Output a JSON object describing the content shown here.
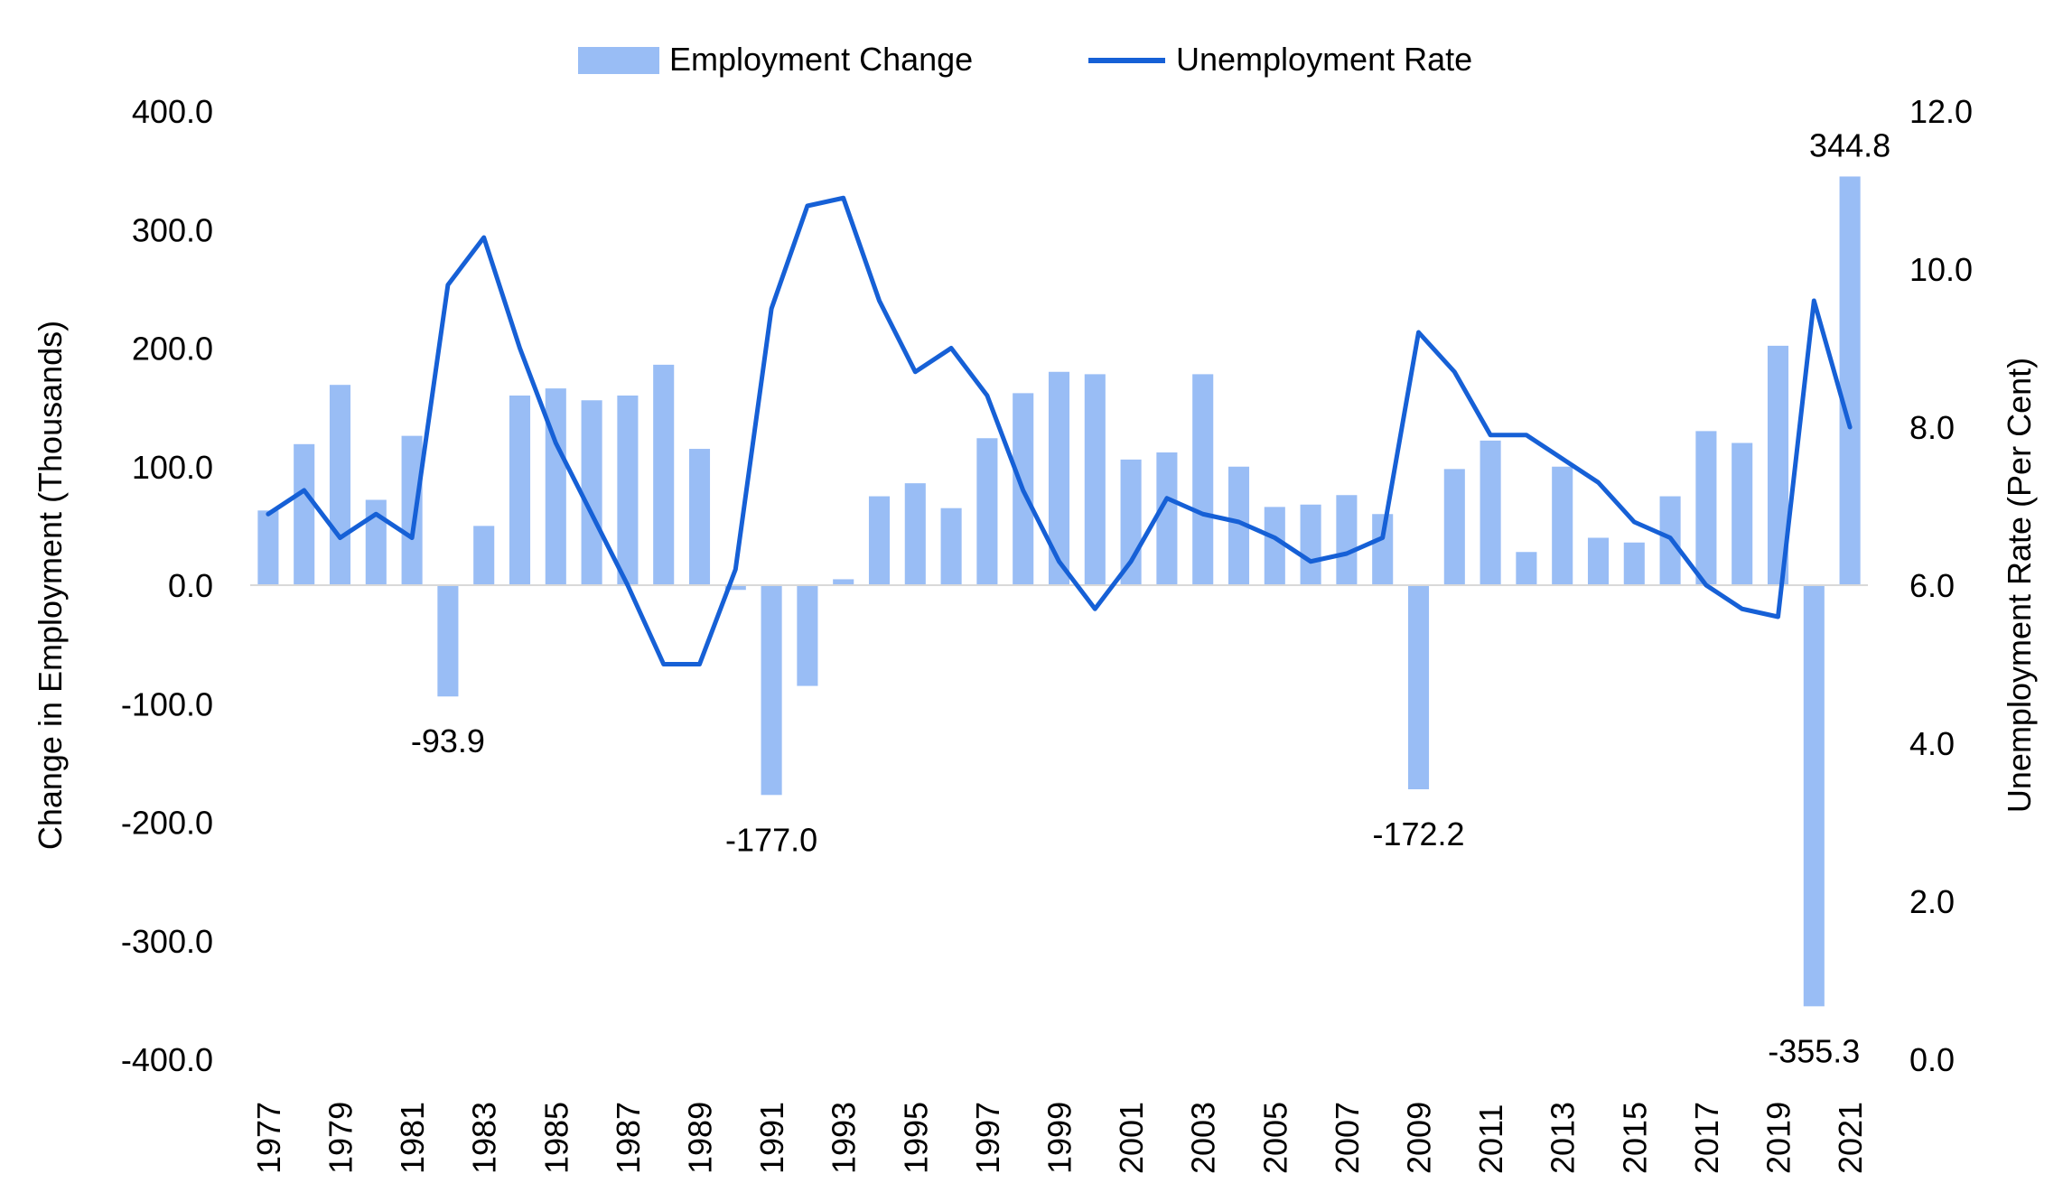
{
  "chart_data": {
    "type": "bar+line",
    "categories": [
      "1977",
      "1978",
      "1979",
      "1980",
      "1981",
      "1982",
      "1983",
      "1984",
      "1985",
      "1986",
      "1987",
      "1988",
      "1989",
      "1990",
      "1991",
      "1992",
      "1993",
      "1994",
      "1995",
      "1996",
      "1997",
      "1998",
      "1999",
      "2000",
      "2001",
      "2002",
      "2003",
      "2004",
      "2005",
      "2006",
      "2007",
      "2008",
      "2009",
      "2010",
      "2011",
      "2012",
      "2013",
      "2014",
      "2015",
      "2016",
      "2017",
      "2018",
      "2019",
      "2020",
      "2021"
    ],
    "x_tick_labels": [
      "1977",
      "1979",
      "1981",
      "1983",
      "1985",
      "1987",
      "1989",
      "1991",
      "1993",
      "1995",
      "1997",
      "1999",
      "2001",
      "2003",
      "2005",
      "2007",
      "2009",
      "2011",
      "2013",
      "2015",
      "2017",
      "2019",
      "2021"
    ],
    "series": [
      {
        "name": "Employment Change",
        "type": "bar",
        "axis": "left",
        "color": "#99bdf5",
        "values": [
          63,
          119,
          169,
          72,
          126,
          -93.9,
          50,
          160,
          166,
          156,
          160,
          186,
          115,
          -4,
          -177.0,
          -85,
          5,
          75,
          86,
          65,
          124,
          162,
          180,
          178,
          106,
          112,
          178,
          100,
          66,
          68,
          76,
          60,
          -172.2,
          98,
          122,
          28,
          100,
          40,
          36,
          75,
          130,
          120,
          202,
          -355.3,
          344.8
        ]
      },
      {
        "name": "Unemployment Rate",
        "type": "line",
        "axis": "right",
        "color": "#1660d6",
        "values": [
          6.9,
          7.2,
          6.6,
          6.9,
          6.6,
          9.8,
          10.4,
          9.0,
          7.8,
          6.9,
          6.0,
          5.0,
          5.0,
          6.2,
          9.5,
          10.8,
          10.9,
          9.6,
          8.7,
          9.0,
          8.4,
          7.2,
          6.3,
          5.7,
          6.3,
          7.1,
          6.9,
          6.8,
          6.6,
          6.3,
          6.4,
          6.6,
          9.2,
          8.7,
          7.9,
          7.9,
          7.6,
          7.3,
          6.8,
          6.6,
          6.0,
          5.7,
          5.6,
          9.6,
          8.0
        ]
      }
    ],
    "annotations": [
      {
        "category": "1982",
        "text": "-93.9"
      },
      {
        "category": "1991",
        "text": "-177.0"
      },
      {
        "category": "2009",
        "text": "-172.2"
      },
      {
        "category": "2020",
        "text": "-355.3"
      },
      {
        "category": "2021",
        "text": "344.8"
      }
    ],
    "left_axis": {
      "label": "Change in Employment (Thousands)",
      "ylim": [
        -400,
        400
      ],
      "ticks": [
        "400.0",
        "300.0",
        "200.0",
        "100.0",
        "0.0",
        "-100.0",
        "-200.0",
        "-300.0",
        "-400.0"
      ]
    },
    "right_axis": {
      "label": "Unemployment Rate (Per Cent)",
      "ylim": [
        0,
        12
      ],
      "ticks": [
        "12.0",
        "10.0",
        "8.0",
        "6.0",
        "4.0",
        "2.0",
        "0.0"
      ]
    },
    "legend": {
      "position": "top-center",
      "items": [
        {
          "label": "Employment Change",
          "symbol": "bar"
        },
        {
          "label": "Unemployment Rate",
          "symbol": "line"
        }
      ]
    },
    "grid": false
  }
}
